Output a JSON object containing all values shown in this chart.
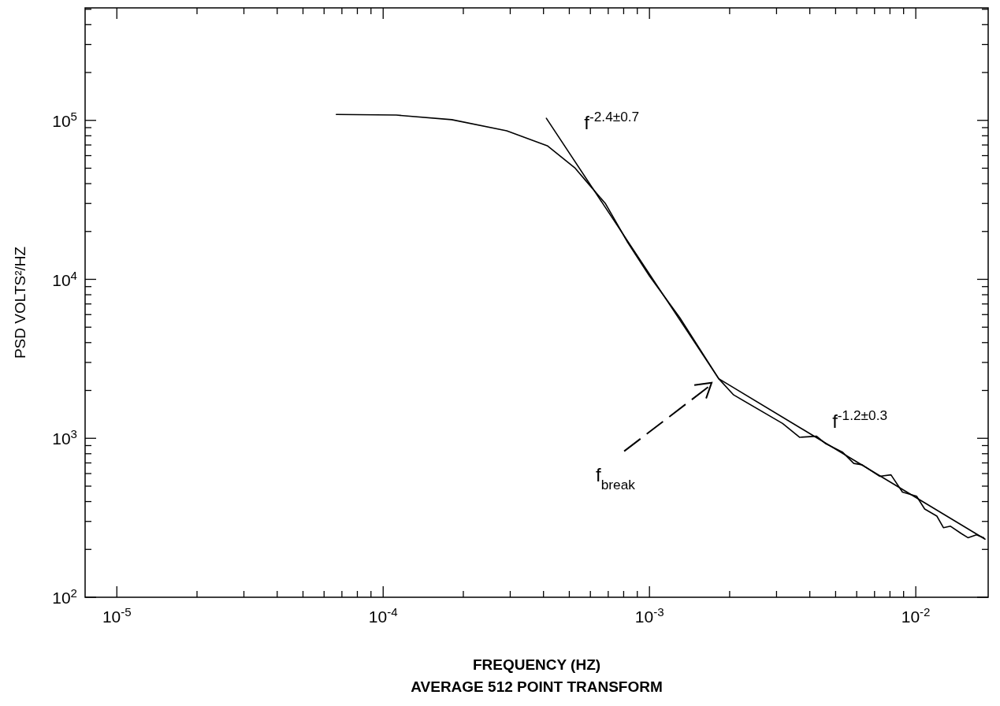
{
  "chart_data": {
    "type": "line",
    "xlabel": "FREQUENCY (HZ)",
    "ylabel": "PSD VOLTS²/HZ",
    "log": "xy",
    "xlim": [
      7.6e-06,
      0.0187
    ],
    "ylim": [
      100,
      510000
    ],
    "xticks": [
      {
        "value": 1e-05,
        "label": "10$^{-5}$"
      },
      {
        "value": 2e-05,
        "label": null
      },
      {
        "value": 3e-05,
        "label": null
      },
      {
        "value": 4e-05,
        "label": null
      },
      {
        "value": 5e-05,
        "label": null
      },
      {
        "value": 6e-05,
        "label": null
      },
      {
        "value": 7e-05,
        "label": null
      },
      {
        "value": 8e-05,
        "label": null
      },
      {
        "value": 9e-05,
        "label": null
      },
      {
        "value": 0.0001,
        "label": "10$^{-4}$"
      },
      {
        "value": 0.0002,
        "label": null
      },
      {
        "value": 0.0003,
        "label": null
      },
      {
        "value": 0.0004,
        "label": null
      },
      {
        "value": 0.0005,
        "label": null
      },
      {
        "value": 0.0006,
        "label": null
      },
      {
        "value": 0.0007,
        "label": null
      },
      {
        "value": 0.0008,
        "label": null
      },
      {
        "value": 0.0009,
        "label": null
      },
      {
        "value": 0.001,
        "label": "10$^{-3}$"
      },
      {
        "value": 0.002,
        "label": null
      },
      {
        "value": 0.003,
        "label": null
      },
      {
        "value": 0.004,
        "label": null
      },
      {
        "value": 0.005,
        "label": null
      },
      {
        "value": 0.006,
        "label": null
      },
      {
        "value": 0.007,
        "label": null
      },
      {
        "value": 0.008,
        "label": null
      },
      {
        "value": 0.009,
        "label": null
      },
      {
        "value": 0.01,
        "label": "10$^{-2}$"
      }
    ],
    "yticks": [
      {
        "value": 100,
        "label": "10$^{2}$"
      },
      {
        "value": 200,
        "label": null
      },
      {
        "value": 300,
        "label": null
      },
      {
        "value": 400,
        "label": null
      },
      {
        "value": 500,
        "label": null
      },
      {
        "value": 600,
        "label": null
      },
      {
        "value": 700,
        "label": null
      },
      {
        "value": 800,
        "label": null
      },
      {
        "value": 900,
        "label": null
      },
      {
        "value": 1000,
        "label": "10$^{3}$"
      },
      {
        "value": 2000,
        "label": null
      },
      {
        "value": 3000,
        "label": null
      },
      {
        "value": 4000,
        "label": null
      },
      {
        "value": 5000,
        "label": null
      },
      {
        "value": 6000,
        "label": null
      },
      {
        "value": 7000,
        "label": null
      },
      {
        "value": 8000,
        "label": null
      },
      {
        "value": 9000,
        "label": null
      },
      {
        "value": 10000,
        "label": "10$^{4}$"
      },
      {
        "value": 20000,
        "label": null
      },
      {
        "value": 30000,
        "label": null
      },
      {
        "value": 40000,
        "label": null
      },
      {
        "value": 50000,
        "label": null
      },
      {
        "value": 60000,
        "label": null
      },
      {
        "value": 70000,
        "label": null
      },
      {
        "value": 80000,
        "label": null
      },
      {
        "value": 90000,
        "label": null
      },
      {
        "value": 100000,
        "label": "10$^{5}$"
      },
      {
        "value": 200000,
        "label": null
      },
      {
        "value": 300000,
        "label": null
      },
      {
        "value": 400000,
        "label": null
      },
      {
        "value": 500000,
        "label": null
      }
    ],
    "series": [
      {
        "color": "#000000",
        "x": [
          6.67e-05,
          0.000112,
          0.000181,
          0.000291,
          0.000415,
          0.000526,
          0.000593,
          0.000684,
          0.000828,
          0.001,
          0.0013,
          0.00182,
          0.00207,
          0.00316,
          0.00366,
          0.00424,
          0.00457,
          0.0053,
          0.00585,
          0.00629,
          0.00731,
          0.00807,
          0.00891,
          0.01007,
          0.0108,
          0.012,
          0.0127,
          0.0135,
          0.0148,
          0.0157,
          0.0169,
          0.018
        ],
        "values": [
          109000,
          108000,
          101000,
          86000,
          69000,
          50000,
          39500,
          29900,
          17100,
          10500,
          5730,
          2370,
          1875,
          1240,
          1015,
          1030,
          929,
          820,
          695,
          681,
          577,
          589,
          459,
          432,
          359,
          324,
          274,
          280,
          252,
          237,
          247,
          237
        ]
      },
      {
        "color": "#000000",
        "x": [
          0.00041,
          0.00182,
          0.0182
        ],
        "values": [
          103000,
          2370,
          232
        ]
      }
    ],
    "annotations": [
      {
        "text": "f$^{-2.4±0.7}$",
        "x": 0.00041,
        "y": 103000
      },
      {
        "text": "f$^{-1.2±0.3}$",
        "x": 0.0046,
        "y": 930
      },
      "f$_{break}$",
      "AVERAGE 512 POINT TRANSFORM"
    ]
  }
}
